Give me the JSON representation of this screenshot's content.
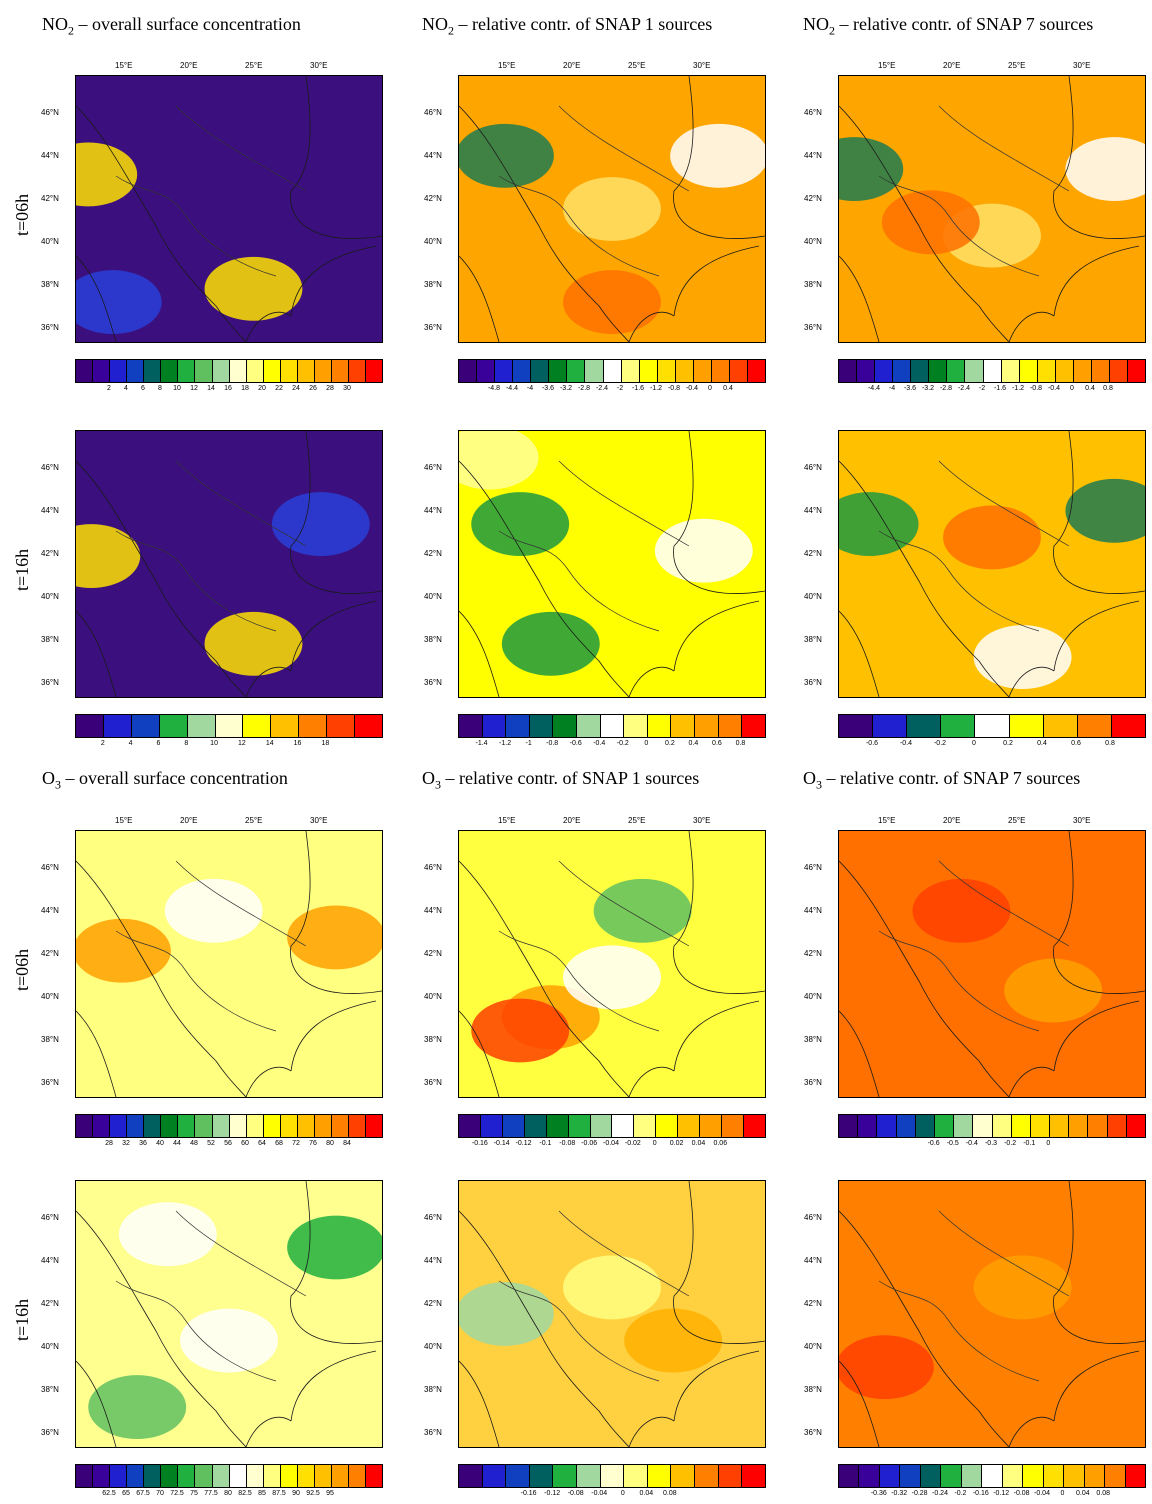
{
  "titles": [
    {
      "species": "NO",
      "sub": "2",
      "rest": " – overall surface concentration"
    },
    {
      "species": "NO",
      "sub": "2",
      "rest": " – relative contr. of SNAP 1 sources"
    },
    {
      "species": "NO",
      "sub": "2",
      "rest": " – relative contr. of SNAP 7 sources"
    },
    {
      "species": "O",
      "sub": "3",
      "rest": " – overall surface concentration"
    },
    {
      "species": "O",
      "sub": "3",
      "rest": " – relative contr. of SNAP 1 sources"
    },
    {
      "species": "O",
      "sub": "3",
      "rest": " – relative contr. of SNAP 7 sources"
    }
  ],
  "row_labels": [
    "t=06h",
    "t=16h",
    "t=06h",
    "t=16h"
  ],
  "lon_labels": [
    "15°E",
    "20°E",
    "25°E",
    "30°E"
  ],
  "lat_labels": [
    "46°N",
    "44°N",
    "42°N",
    "40°N",
    "38°N",
    "36°N"
  ],
  "colorbars": [
    {
      "colors": [
        "#3a007a",
        "#3a009a",
        "#2020d0",
        "#1040c0",
        "#006060",
        "#008020",
        "#20b040",
        "#60c060",
        "#a0d8a0",
        "#ffffd0",
        "#ffff80",
        "#ffff00",
        "#ffe000",
        "#ffc000",
        "#ffa000",
        "#ff8000",
        "#ff4000",
        "#ff0000"
      ],
      "ticks": [
        "2",
        "4",
        "6",
        "8",
        "10",
        "12",
        "14",
        "16",
        "18",
        "20",
        "22",
        "24",
        "26",
        "28",
        "30"
      ]
    },
    {
      "colors": [
        "#3a007a",
        "#3a009a",
        "#2020d0",
        "#1040c0",
        "#006060",
        "#008020",
        "#20b040",
        "#a0d8a0",
        "#ffffff",
        "#ffff80",
        "#ffff00",
        "#ffe000",
        "#ffc000",
        "#ffa000",
        "#ff8000",
        "#ff4000",
        "#ff0000"
      ],
      "ticks": [
        "-4.8",
        "-4.4",
        "-4",
        "-3.6",
        "-3.2",
        "-2.8",
        "-2.4",
        "-2",
        "-1.6",
        "-1.2",
        "-0.8",
        "-0.4",
        "0",
        "0.4"
      ]
    },
    {
      "colors": [
        "#3a007a",
        "#3a009a",
        "#2020d0",
        "#1040c0",
        "#006060",
        "#008020",
        "#20b040",
        "#a0d8a0",
        "#ffffff",
        "#ffff80",
        "#ffff00",
        "#ffe000",
        "#ffc000",
        "#ffa000",
        "#ff8000",
        "#ff4000",
        "#ff0000"
      ],
      "ticks": [
        "-4.4",
        "-4",
        "-3.6",
        "-3.2",
        "-2.8",
        "-2.4",
        "-2",
        "-1.6",
        "-1.2",
        "-0.8",
        "-0.4",
        "0",
        "0.4",
        "0.8"
      ]
    },
    {
      "colors": [
        "#3a007a",
        "#2020d0",
        "#1040c0",
        "#20b040",
        "#a0d8a0",
        "#ffffd0",
        "#ffff00",
        "#ffc000",
        "#ff8000",
        "#ff4000",
        "#ff0000"
      ],
      "ticks": [
        "2",
        "4",
        "6",
        "8",
        "10",
        "12",
        "14",
        "16",
        "18"
      ]
    },
    {
      "colors": [
        "#3a007a",
        "#2020d0",
        "#1040c0",
        "#006060",
        "#008020",
        "#a0d8a0",
        "#ffffff",
        "#ffff80",
        "#ffff00",
        "#ffc000",
        "#ffa000",
        "#ff8000",
        "#ff0000"
      ],
      "ticks": [
        "-1.4",
        "-1.2",
        "-1",
        "-0.8",
        "-0.6",
        "-0.4",
        "-0.2",
        "0",
        "0.2",
        "0.4",
        "0.6",
        "0.8"
      ]
    },
    {
      "colors": [
        "#3a007a",
        "#2020d0",
        "#006060",
        "#20b040",
        "#ffffff",
        "#ffff00",
        "#ffc000",
        "#ff8000",
        "#ff0000"
      ],
      "ticks": [
        "-0.6",
        "-0.4",
        "-0.2",
        "0",
        "0.2",
        "0.4",
        "0.6",
        "0.8"
      ]
    },
    {
      "colors": [
        "#3a007a",
        "#3a009a",
        "#2020d0",
        "#1040c0",
        "#006060",
        "#008020",
        "#20b040",
        "#60c060",
        "#a0d8a0",
        "#ffffd0",
        "#ffff80",
        "#ffff00",
        "#ffe000",
        "#ffc000",
        "#ffa000",
        "#ff8000",
        "#ff4000",
        "#ff0000"
      ],
      "ticks": [
        "28",
        "32",
        "36",
        "40",
        "44",
        "48",
        "52",
        "56",
        "60",
        "64",
        "68",
        "72",
        "76",
        "80",
        "84"
      ]
    },
    {
      "colors": [
        "#3a007a",
        "#2020d0",
        "#1040c0",
        "#006060",
        "#008020",
        "#20b040",
        "#a0d8a0",
        "#ffffff",
        "#ffff80",
        "#ffff00",
        "#ffc000",
        "#ffa000",
        "#ff8000",
        "#ff0000"
      ],
      "ticks": [
        "-0.16",
        "-0.14",
        "-0.12",
        "-0.1",
        "-0.08",
        "-0.06",
        "-0.04",
        "-0.02",
        "0",
        "0.02",
        "0.04",
        "0.06"
      ]
    },
    {
      "colors": [
        "#3a007a",
        "#3a009a",
        "#2020d0",
        "#1040c0",
        "#006060",
        "#20b040",
        "#a0d8a0",
        "#ffffd0",
        "#ffff80",
        "#ffff00",
        "#ffe000",
        "#ffc000",
        "#ffa000",
        "#ff8000",
        "#ff4000",
        "#ff0000"
      ],
      "ticks": [
        "-0.6",
        "-0.5",
        "-0.4",
        "-0.3",
        "-0.2",
        "-0.1",
        "0"
      ]
    },
    {
      "colors": [
        "#3a007a",
        "#3a009a",
        "#2020d0",
        "#1040c0",
        "#006060",
        "#008020",
        "#20b040",
        "#60c060",
        "#a0d8a0",
        "#ffffff",
        "#ffffd0",
        "#ffff80",
        "#ffff00",
        "#ffe000",
        "#ffc000",
        "#ffa000",
        "#ff8000",
        "#ff0000"
      ],
      "ticks": [
        "62.5",
        "65",
        "67.5",
        "70",
        "72.5",
        "75",
        "77.5",
        "80",
        "82.5",
        "85",
        "87.5",
        "90",
        "92.5",
        "95"
      ]
    },
    {
      "colors": [
        "#3a007a",
        "#2020d0",
        "#1040c0",
        "#006060",
        "#20b040",
        "#a0d8a0",
        "#ffffd0",
        "#ffff80",
        "#ffff00",
        "#ffc000",
        "#ff8000",
        "#ff4000",
        "#ff0000"
      ],
      "ticks": [
        "-0.16",
        "-0.12",
        "-0.08",
        "-0.04",
        "0",
        "0.04",
        "0.08"
      ]
    },
    {
      "colors": [
        "#3a007a",
        "#3a009a",
        "#2020d0",
        "#1040c0",
        "#006060",
        "#20b040",
        "#a0d8a0",
        "#ffffff",
        "#ffff80",
        "#ffff00",
        "#ffe000",
        "#ffc000",
        "#ffa000",
        "#ff8000",
        "#ff0000"
      ],
      "ticks": [
        "-0.36",
        "-0.32",
        "-0.28",
        "-0.24",
        "-0.2",
        "-0.16",
        "-0.12",
        "-0.08",
        "-0.04",
        "0",
        "0.04",
        "0.08"
      ]
    }
  ],
  "map_fills": [
    {
      "base": "#3b0f7d",
      "blobs": [
        [
          "#2a3fd8",
          0.12,
          0.85
        ],
        [
          "#ffe000",
          0.58,
          0.8
        ],
        [
          "#ffe000",
          0.04,
          0.37
        ]
      ]
    },
    {
      "base": "#ffa500",
      "blobs": [
        [
          "#ffe066",
          0.5,
          0.5
        ],
        [
          "#1f7a50",
          0.15,
          0.3
        ],
        [
          "#ffffff",
          0.85,
          0.3
        ],
        [
          "#ff7000",
          0.5,
          0.85
        ]
      ]
    },
    {
      "base": "#ffa500",
      "blobs": [
        [
          "#ffe066",
          0.5,
          0.6
        ],
        [
          "#ff7000",
          0.3,
          0.55
        ],
        [
          "#ffffff",
          0.9,
          0.35
        ],
        [
          "#1f7a50",
          0.05,
          0.35
        ]
      ]
    },
    {
      "base": "#3b0f7d",
      "blobs": [
        [
          "#2a3fd8",
          0.8,
          0.35
        ],
        [
          "#ffe000",
          0.05,
          0.47
        ],
        [
          "#ffe000",
          0.58,
          0.8
        ]
      ]
    },
    {
      "base": "#ffff00",
      "blobs": [
        [
          "#1f9a40",
          0.2,
          0.35
        ],
        [
          "#ffffff",
          0.8,
          0.45
        ],
        [
          "#1f9a40",
          0.3,
          0.8
        ],
        [
          "#ffff99",
          0.1,
          0.1
        ]
      ]
    },
    {
      "base": "#ffc000",
      "blobs": [
        [
          "#1f9a40",
          0.1,
          0.35
        ],
        [
          "#ff7000",
          0.5,
          0.4
        ],
        [
          "#ffffff",
          0.6,
          0.85
        ],
        [
          "#1f7a50",
          0.9,
          0.3
        ]
      ]
    },
    {
      "base": "#ffff80",
      "blobs": [
        [
          "#ffa000",
          0.15,
          0.45
        ],
        [
          "#ffa000",
          0.85,
          0.4
        ],
        [
          "#ffffff",
          0.45,
          0.3
        ]
      ]
    },
    {
      "base": "#ffff40",
      "blobs": [
        [
          "#ffa000",
          0.3,
          0.7
        ],
        [
          "#ff4000",
          0.2,
          0.75
        ],
        [
          "#ffffff",
          0.5,
          0.55
        ],
        [
          "#60c060",
          0.6,
          0.3
        ]
      ]
    },
    {
      "base": "#ff7000",
      "blobs": [
        [
          "#ff4000",
          0.4,
          0.3
        ],
        [
          "#ffa000",
          0.7,
          0.6
        ]
      ]
    },
    {
      "base": "#ffff90",
      "blobs": [
        [
          "#ffffff",
          0.3,
          0.2
        ],
        [
          "#20b040",
          0.85,
          0.25
        ],
        [
          "#ffffff",
          0.5,
          0.6
        ],
        [
          "#60c060",
          0.2,
          0.85
        ]
      ]
    },
    {
      "base": "#ffd040",
      "blobs": [
        [
          "#ffff80",
          0.5,
          0.4
        ],
        [
          "#a0d8a0",
          0.15,
          0.5
        ],
        [
          "#ffb000",
          0.7,
          0.6
        ]
      ]
    },
    {
      "base": "#ff8000",
      "blobs": [
        [
          "#ff4000",
          0.15,
          0.7
        ],
        [
          "#ffa000",
          0.6,
          0.4
        ]
      ]
    }
  ]
}
